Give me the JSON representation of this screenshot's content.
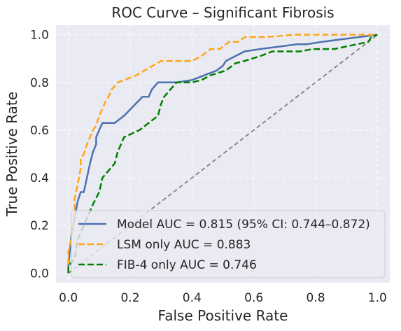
{
  "chart_data": {
    "type": "line",
    "title": "ROC Curve – Significant Fibrosis",
    "xlabel": "False Positive Rate",
    "ylabel": "True Positive Rate",
    "xlim": [
      -0.04,
      1.04
    ],
    "ylim": [
      -0.04,
      1.04
    ],
    "xticks": [
      "0.0",
      "0.2",
      "0.4",
      "0.6",
      "0.8",
      "1.0"
    ],
    "yticks": [
      "0.0",
      "0.2",
      "0.4",
      "0.6",
      "0.8",
      "1.0"
    ],
    "grid": true,
    "legend_position": "lower-right",
    "series": [
      {
        "name": "Model AUC = 0.815 (95% CI: 0.744–0.872)",
        "color": "#4c72b0",
        "style": "solid",
        "points": [
          [
            0,
            0
          ],
          [
            0,
            0.03
          ],
          [
            0.01,
            0.16
          ],
          [
            0.02,
            0.23
          ],
          [
            0.03,
            0.3
          ],
          [
            0.04,
            0.34
          ],
          [
            0.05,
            0.34
          ],
          [
            0.06,
            0.4
          ],
          [
            0.07,
            0.46
          ],
          [
            0.08,
            0.51
          ],
          [
            0.09,
            0.54
          ],
          [
            0.09,
            0.57
          ],
          [
            0.1,
            0.6
          ],
          [
            0.11,
            0.63
          ],
          [
            0.15,
            0.63
          ],
          [
            0.18,
            0.66
          ],
          [
            0.21,
            0.7
          ],
          [
            0.24,
            0.74
          ],
          [
            0.26,
            0.74
          ],
          [
            0.27,
            0.77
          ],
          [
            0.29,
            0.8
          ],
          [
            0.35,
            0.8
          ],
          [
            0.4,
            0.81
          ],
          [
            0.44,
            0.83
          ],
          [
            0.48,
            0.85
          ],
          [
            0.5,
            0.87
          ],
          [
            0.51,
            0.89
          ],
          [
            0.54,
            0.91
          ],
          [
            0.57,
            0.93
          ],
          [
            0.62,
            0.94
          ],
          [
            0.68,
            0.95
          ],
          [
            0.74,
            0.96
          ],
          [
            0.77,
            0.96
          ],
          [
            0.82,
            0.97
          ],
          [
            0.88,
            0.98
          ],
          [
            0.94,
            0.99
          ],
          [
            1.0,
            1.0
          ]
        ]
      },
      {
        "name": "LSM only AUC = 0.883",
        "color": "#ffa51a",
        "style": "dashed",
        "points": [
          [
            0,
            0
          ],
          [
            0,
            0.09
          ],
          [
            0.01,
            0.15
          ],
          [
            0.02,
            0.26
          ],
          [
            0.02,
            0.31
          ],
          [
            0.03,
            0.37
          ],
          [
            0.04,
            0.44
          ],
          [
            0.04,
            0.48
          ],
          [
            0.05,
            0.5
          ],
          [
            0.06,
            0.54
          ],
          [
            0.07,
            0.57
          ],
          [
            0.08,
            0.6
          ],
          [
            0.09,
            0.62
          ],
          [
            0.1,
            0.66
          ],
          [
            0.11,
            0.69
          ],
          [
            0.12,
            0.72
          ],
          [
            0.13,
            0.74
          ],
          [
            0.14,
            0.77
          ],
          [
            0.16,
            0.8
          ],
          [
            0.18,
            0.81
          ],
          [
            0.22,
            0.83
          ],
          [
            0.26,
            0.86
          ],
          [
            0.3,
            0.89
          ],
          [
            0.4,
            0.89
          ],
          [
            0.43,
            0.91
          ],
          [
            0.46,
            0.94
          ],
          [
            0.49,
            0.94
          ],
          [
            0.52,
            0.97
          ],
          [
            0.55,
            0.97
          ],
          [
            0.57,
            0.99
          ],
          [
            0.64,
            0.99
          ],
          [
            0.73,
            1.0
          ],
          [
            1.0,
            1.0
          ]
        ]
      },
      {
        "name": "FIB-4 only AUC = 0.746",
        "color": "#008000",
        "style": "dashed",
        "points": [
          [
            0,
            0
          ],
          [
            0,
            0.03
          ],
          [
            0.02,
            0.06
          ],
          [
            0.03,
            0.14
          ],
          [
            0.04,
            0.17
          ],
          [
            0.06,
            0.23
          ],
          [
            0.08,
            0.29
          ],
          [
            0.1,
            0.34
          ],
          [
            0.11,
            0.4
          ],
          [
            0.13,
            0.43
          ],
          [
            0.15,
            0.46
          ],
          [
            0.16,
            0.51
          ],
          [
            0.17,
            0.54
          ],
          [
            0.18,
            0.57
          ],
          [
            0.23,
            0.6
          ],
          [
            0.26,
            0.63
          ],
          [
            0.29,
            0.66
          ],
          [
            0.3,
            0.71
          ],
          [
            0.31,
            0.74
          ],
          [
            0.33,
            0.77
          ],
          [
            0.35,
            0.8
          ],
          [
            0.4,
            0.8
          ],
          [
            0.43,
            0.81
          ],
          [
            0.46,
            0.83
          ],
          [
            0.51,
            0.85
          ],
          [
            0.54,
            0.88
          ],
          [
            0.57,
            0.89
          ],
          [
            0.62,
            0.91
          ],
          [
            0.66,
            0.93
          ],
          [
            0.75,
            0.93
          ],
          [
            0.79,
            0.94
          ],
          [
            0.86,
            0.94
          ],
          [
            0.97,
            0.97
          ],
          [
            0.98,
            0.99
          ],
          [
            1.0,
            1.0
          ]
        ]
      },
      {
        "name": "",
        "color": "#808080",
        "style": "dashed",
        "points": [
          [
            0,
            0
          ],
          [
            1,
            1
          ]
        ]
      }
    ]
  }
}
